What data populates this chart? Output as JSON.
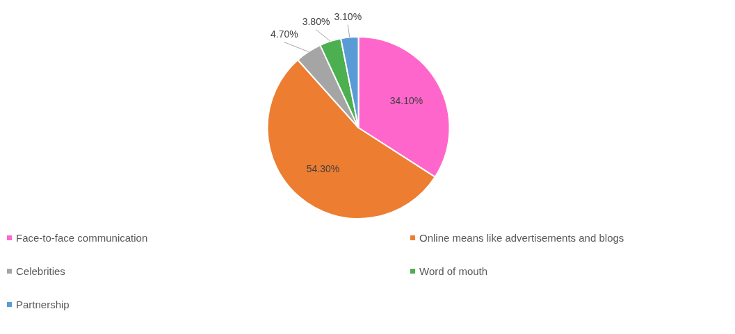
{
  "chart_data": {
    "type": "pie",
    "categories": [
      "Face-to-face communication",
      "Online means like advertisements and blogs",
      "Celebrities",
      "Word of mouth",
      "Partnership"
    ],
    "values": [
      34.1,
      54.3,
      4.7,
      3.8,
      3.1
    ],
    "value_labels": [
      "34.10%",
      "54.30%",
      "4.70%",
      "3.80%",
      "3.10%"
    ],
    "colors": [
      "#ff66cc",
      "#ed7d31",
      "#a5a5a5",
      "#4caf50",
      "#5b9bd5"
    ],
    "legend": "bottom"
  }
}
